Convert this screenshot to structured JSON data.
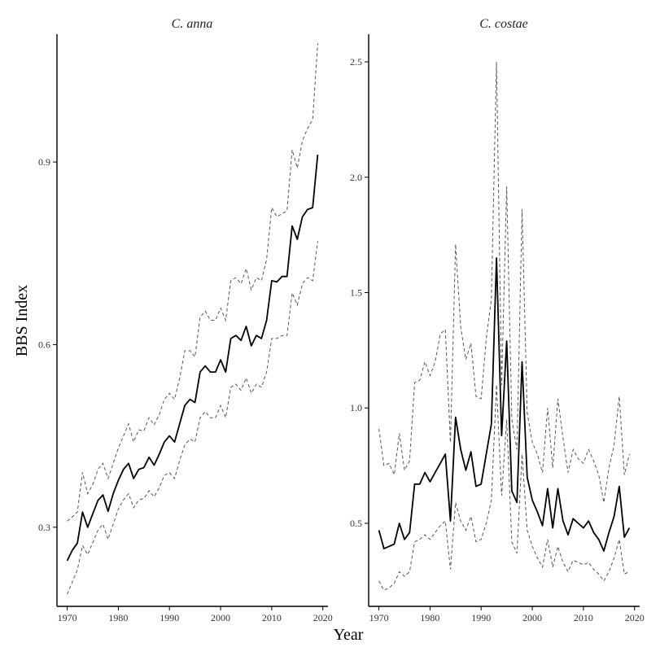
{
  "figure": {
    "xlabel": "Year",
    "ylabel": "BBS Index"
  },
  "chart_data": [
    {
      "type": "line",
      "title": "C. anna",
      "xlabel": "Year",
      "ylabel": "BBS Index",
      "xlim": [
        1968,
        2021
      ],
      "ylim": [
        0.17,
        1.11
      ],
      "xticks": [
        1970,
        1980,
        1990,
        2000,
        2010,
        2020
      ],
      "yticks": [
        0.3,
        0.6,
        0.9
      ],
      "ytick_labels": [
        "0.3",
        "0.6",
        "0.9"
      ],
      "x": [
        1970,
        1971,
        1972,
        1973,
        1974,
        1975,
        1976,
        1977,
        1978,
        1979,
        1980,
        1981,
        1982,
        1983,
        1984,
        1985,
        1986,
        1987,
        1988,
        1989,
        1990,
        1991,
        1992,
        1993,
        1994,
        1995,
        1996,
        1997,
        1998,
        1999,
        2000,
        2001,
        2002,
        2003,
        2004,
        2005,
        2006,
        2007,
        2008,
        2009,
        2010,
        2011,
        2012,
        2013,
        2014,
        2015,
        2016,
        2017,
        2018,
        2019
      ],
      "series": [
        {
          "role": "mean",
          "values": [
            0.245,
            0.262,
            0.274,
            0.325,
            0.3,
            0.322,
            0.344,
            0.353,
            0.326,
            0.355,
            0.377,
            0.395,
            0.405,
            0.38,
            0.395,
            0.398,
            0.415,
            0.402,
            0.42,
            0.44,
            0.45,
            0.44,
            0.47,
            0.5,
            0.51,
            0.505,
            0.555,
            0.565,
            0.555,
            0.555,
            0.575,
            0.555,
            0.61,
            0.615,
            0.607,
            0.63,
            0.598,
            0.615,
            0.61,
            0.64,
            0.705,
            0.703,
            0.712,
            0.712,
            0.795,
            0.773,
            0.81,
            0.822,
            0.825,
            0.912
          ]
        },
        {
          "role": "upper",
          "values": [
            0.31,
            0.317,
            0.325,
            0.39,
            0.355,
            0.37,
            0.395,
            0.405,
            0.38,
            0.405,
            0.43,
            0.45,
            0.47,
            0.44,
            0.46,
            0.458,
            0.48,
            0.468,
            0.485,
            0.51,
            0.52,
            0.51,
            0.545,
            0.59,
            0.59,
            0.58,
            0.645,
            0.655,
            0.64,
            0.64,
            0.66,
            0.64,
            0.705,
            0.71,
            0.7,
            0.725,
            0.69,
            0.71,
            0.705,
            0.74,
            0.825,
            0.81,
            0.815,
            0.82,
            0.92,
            0.89,
            0.935,
            0.955,
            0.97,
            1.095
          ]
        },
        {
          "role": "lower",
          "values": [
            0.19,
            0.21,
            0.23,
            0.27,
            0.255,
            0.275,
            0.295,
            0.305,
            0.28,
            0.305,
            0.33,
            0.345,
            0.355,
            0.332,
            0.345,
            0.347,
            0.36,
            0.35,
            0.365,
            0.385,
            0.39,
            0.38,
            0.41,
            0.435,
            0.445,
            0.44,
            0.48,
            0.49,
            0.48,
            0.48,
            0.5,
            0.48,
            0.53,
            0.535,
            0.525,
            0.545,
            0.52,
            0.535,
            0.53,
            0.555,
            0.61,
            0.61,
            0.615,
            0.615,
            0.685,
            0.665,
            0.7,
            0.71,
            0.705,
            0.77
          ]
        }
      ]
    },
    {
      "type": "line",
      "title": "C. costae",
      "xlabel": "Year",
      "ylabel": "",
      "xlim": [
        1968,
        2021
      ],
      "ylim": [
        0.14,
        2.62
      ],
      "xticks": [
        1970,
        1980,
        1990,
        2000,
        2010,
        2020
      ],
      "yticks": [
        0.5,
        1.0,
        1.5,
        2.0,
        2.5
      ],
      "ytick_labels": [
        "0.5",
        "1.0",
        "1.5",
        "2.0",
        "2.5"
      ],
      "x": [
        1970,
        1971,
        1972,
        1973,
        1974,
        1975,
        1976,
        1977,
        1978,
        1979,
        1980,
        1981,
        1982,
        1983,
        1984,
        1985,
        1986,
        1987,
        1988,
        1989,
        1990,
        1991,
        1992,
        1993,
        1994,
        1995,
        1996,
        1997,
        1998,
        1999,
        2000,
        2001,
        2002,
        2003,
        2004,
        2005,
        2006,
        2007,
        2008,
        2009,
        2010,
        2011,
        2012,
        2013,
        2014,
        2015,
        2016,
        2017,
        2018,
        2019
      ],
      "series": [
        {
          "role": "mean",
          "values": [
            0.47,
            0.39,
            0.4,
            0.41,
            0.5,
            0.43,
            0.46,
            0.67,
            0.67,
            0.72,
            0.68,
            0.72,
            0.76,
            0.8,
            0.51,
            0.96,
            0.82,
            0.73,
            0.81,
            0.66,
            0.67,
            0.8,
            0.93,
            1.65,
            0.88,
            1.29,
            0.64,
            0.59,
            1.2,
            0.7,
            0.6,
            0.55,
            0.49,
            0.65,
            0.48,
            0.65,
            0.51,
            0.45,
            0.52,
            0.5,
            0.48,
            0.51,
            0.46,
            0.43,
            0.38,
            0.46,
            0.53,
            0.66,
            0.44,
            0.48
          ]
        },
        {
          "role": "upper",
          "values": [
            0.91,
            0.75,
            0.76,
            0.71,
            0.89,
            0.73,
            0.77,
            1.11,
            1.12,
            1.2,
            1.14,
            1.2,
            1.32,
            1.34,
            0.85,
            1.71,
            1.35,
            1.21,
            1.28,
            1.05,
            1.04,
            1.3,
            1.47,
            2.5,
            1.1,
            1.96,
            0.95,
            0.82,
            1.86,
            0.98,
            0.85,
            0.8,
            0.72,
            1.0,
            0.74,
            1.04,
            0.87,
            0.72,
            0.82,
            0.78,
            0.76,
            0.82,
            0.77,
            0.71,
            0.59,
            0.74,
            0.84,
            1.05,
            0.71,
            0.8
          ]
        },
        {
          "role": "lower",
          "values": [
            0.25,
            0.21,
            0.22,
            0.24,
            0.29,
            0.27,
            0.29,
            0.42,
            0.43,
            0.45,
            0.43,
            0.46,
            0.49,
            0.51,
            0.3,
            0.59,
            0.51,
            0.47,
            0.53,
            0.42,
            0.43,
            0.5,
            0.6,
            1.1,
            0.62,
            0.95,
            0.42,
            0.37,
            0.8,
            0.47,
            0.4,
            0.35,
            0.31,
            0.43,
            0.31,
            0.4,
            0.33,
            0.29,
            0.34,
            0.33,
            0.32,
            0.33,
            0.3,
            0.28,
            0.25,
            0.29,
            0.35,
            0.43,
            0.28,
            0.29
          ]
        }
      ]
    }
  ]
}
